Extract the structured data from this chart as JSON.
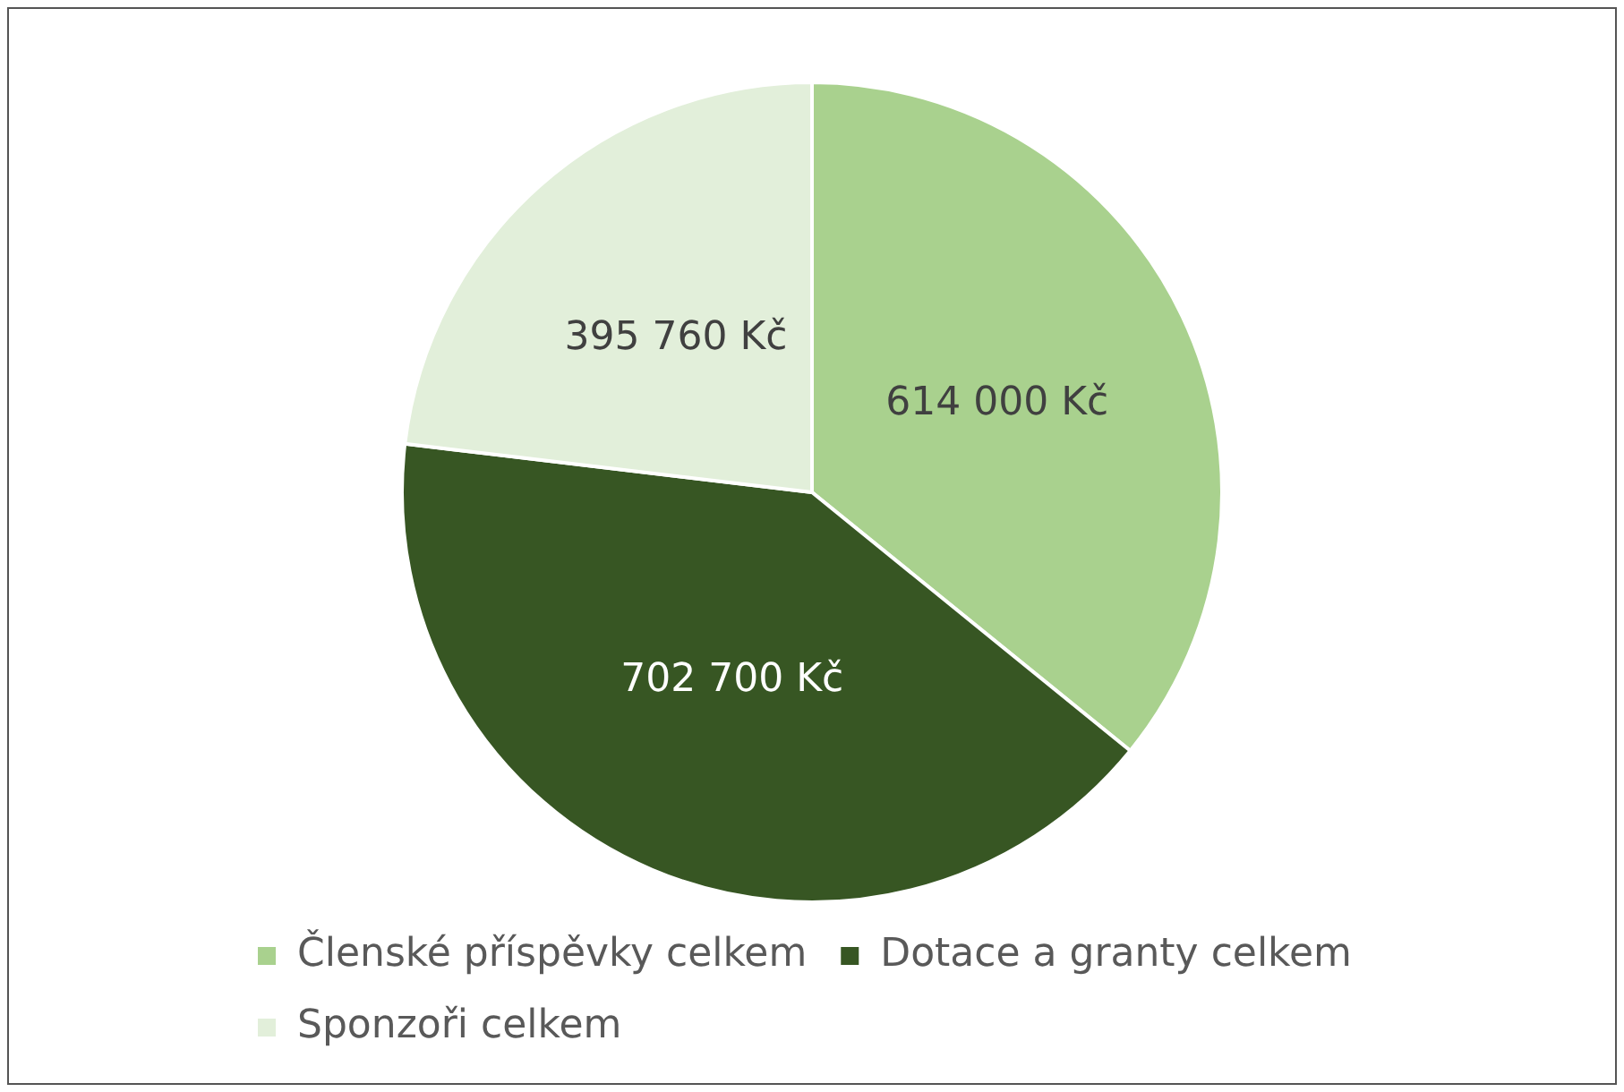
{
  "chart_data": {
    "type": "pie",
    "categories": [
      "Členské příspěvky celkem",
      "Dotace a granty celkem",
      "Sponzoři celkem"
    ],
    "values": [
      614000,
      702700,
      395760
    ],
    "colors": [
      "#a9d18e",
      "#375623",
      "#e2efda"
    ],
    "value_labels": [
      "614 000 Kč",
      "702 700 Kč",
      "395 760 Kč"
    ],
    "legend": "bottom"
  }
}
